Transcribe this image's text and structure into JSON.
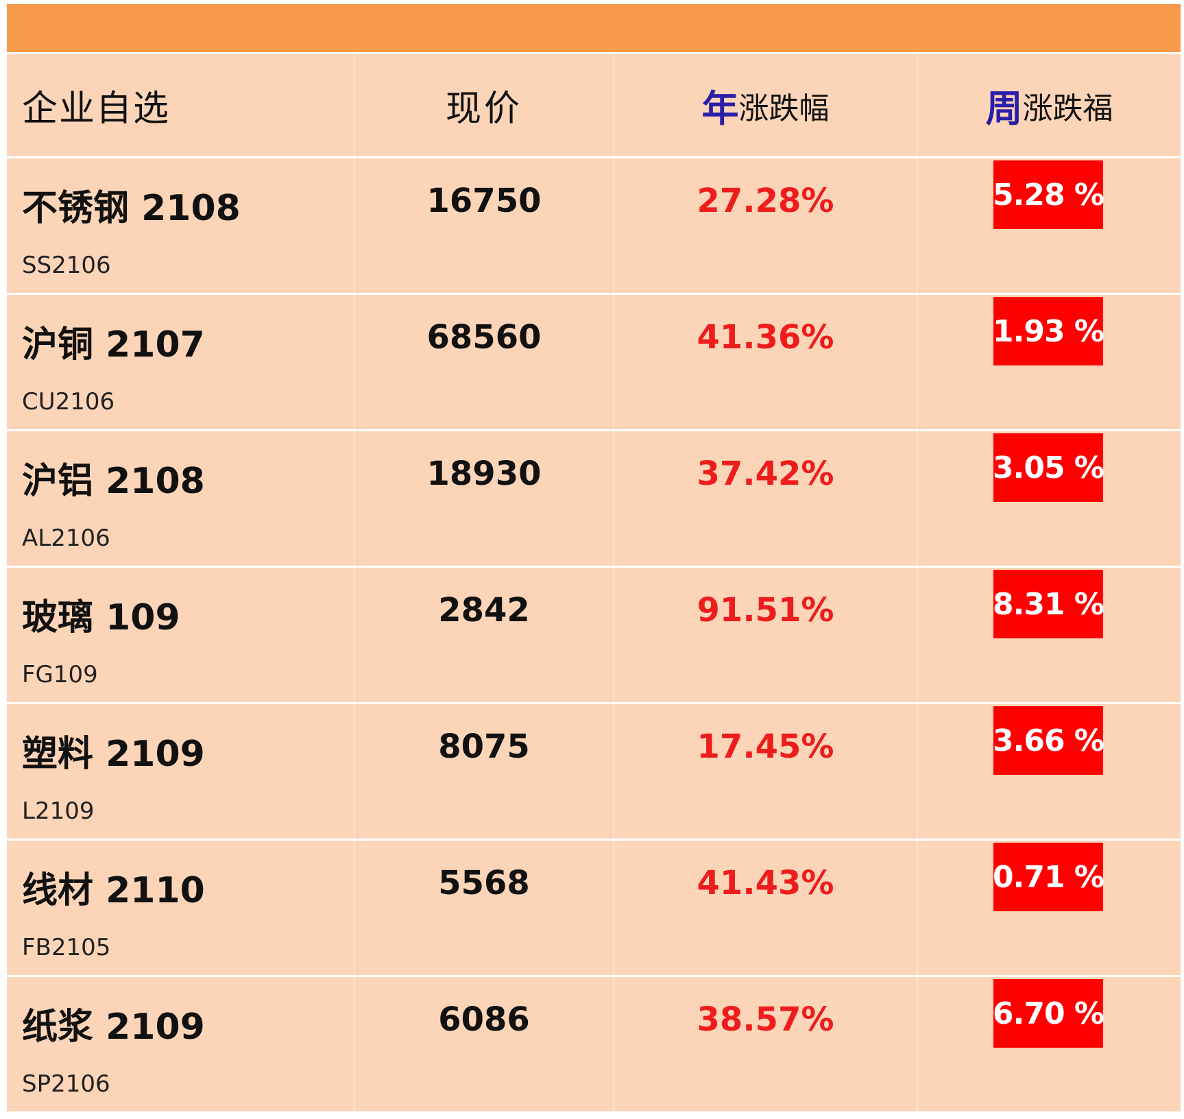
{
  "header": {
    "name_col": "企业自选",
    "price_col": "现价",
    "year_col_accent": "年",
    "year_col_rest": "涨跌幅",
    "week_col_accent": "周",
    "week_col_rest": "涨跌福"
  },
  "colors": {
    "top_bar": "#f79a4a",
    "row_bg": "#fcd5b8",
    "accent_blue": "#2a1fa8",
    "up_red": "#ee1c1c",
    "badge_red": "#ff0000"
  },
  "rows": [
    {
      "name": "不锈钢 2108",
      "code": "SS2106",
      "price": "16750",
      "year_change": "27.28%",
      "week_change": "5.28 %"
    },
    {
      "name": "沪铜 2107",
      "code": "CU2106",
      "price": "68560",
      "year_change": "41.36%",
      "week_change": "1.93 %"
    },
    {
      "name": "沪铝 2108",
      "code": "AL2106",
      "price": "18930",
      "year_change": "37.42%",
      "week_change": "3.05 %"
    },
    {
      "name": "玻璃 109",
      "code": "FG109",
      "price": "2842",
      "year_change": "91.51%",
      "week_change": "8.31 %"
    },
    {
      "name": "塑料 2109",
      "code": "L2109",
      "price": "8075",
      "year_change": "17.45%",
      "week_change": "3.66 %"
    },
    {
      "name": "线材 2110",
      "code": "FB2105",
      "price": "5568",
      "year_change": "41.43%",
      "week_change": "0.71 %"
    },
    {
      "name": "纸浆 2109",
      "code": "SP2106",
      "price": "6086",
      "year_change": "38.57%",
      "week_change": "6.70 %"
    }
  ]
}
